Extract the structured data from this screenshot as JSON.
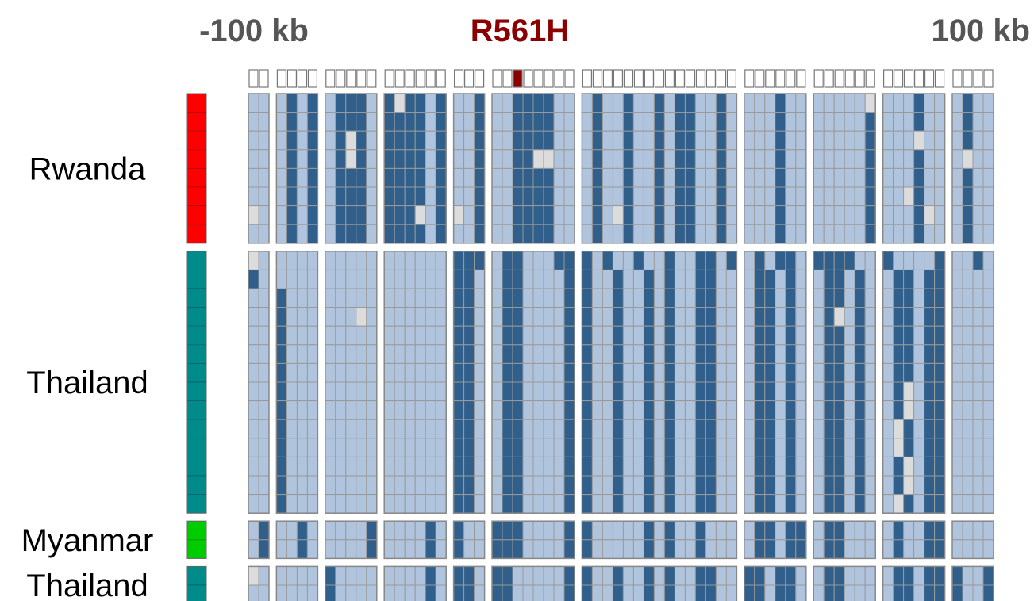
{
  "labels": {
    "left": "-100 kb",
    "center": "R561H",
    "right": "100 kb"
  },
  "header_row": "00 0000 00000 000000 000 00100000 000000000000000 000000 000000 000000 0000",
  "groups": [
    {
      "label": "Rwanda",
      "color": "#ff0000",
      "rows": [
        "00 0101 01110 121101 001 00111100 010010010110010 000100 000002 000100 0100",
        "00 0101 01110 111101 001 00111100 010010010110010 000100 000001 000100 0100",
        "00 0101 01210 111101 001 00111100 010010010110010 000100 000001 000200 0100",
        "00 0101 01210 111101 001 00112200 010010010110010 000100 000001 000100 0200",
        "00 0101 01110 111101 001 00111100 010010010110010 000100 000001 000100 0100",
        "00 0101 01110 111101 001 00111100 010010010110010 000100 000001 002100 0100",
        "20 0101 01110 111201 201 00111100 010210010110010 000100 000001 000120 0100",
        "00 0101 01110 111101 001 00111100 010010010110010 000100 000001 000100 0100"
      ]
    },
    {
      "label": "Thailand",
      "color": "#008b8b",
      "rows": [
        "20 0000 00000 000000 111 01100011 101001001001101 010110 111100 100001 0010",
        "10 0000 00000 000000 110 01100001 100100101001100 011010 011010 011011 0000",
        "00 1000 00000 000000 110 01100001 100100101001100 011010 011010 011011 0000",
        "00 1000 00020 000000 110 01100001 100100101001100 011010 012010 011011 0000",
        "00 1000 00000 000000 110 01100001 100100101001100 011010 011010 011011 0000",
        "00 1000 00000 000000 110 01100001 100100101001100 011010 011010 011011 0000",
        "00 1000 00000 000000 110 01100001 100100101001100 011010 011010 011011 0000",
        "00 1000 00000 000000 110 01100001 100100101001100 011010 011010 012011 0000",
        "00 1000 00000 000000 110 01100001 100100101001100 011010 011010 012011 0000",
        "00 1000 00000 000000 110 01100001 100100101001100 011010 011010 021011 0000",
        "00 1000 00000 000000 110 01100001 100100101001100 011010 011010 021011 0000",
        "00 1000 00000 000000 110 01100001 100100101001100 011010 011010 012011 0000",
        "00 1000 00000 000000 110 01100001 100100101001100 011010 011010 012011 0000",
        "00 1000 00000 000000 110 01100001 100100101001100 011010 011010 021011 0000"
      ]
    },
    {
      "label": "Myanmar",
      "color": "#00cc00",
      "rows": [
        "01 0010 00001 000010 100 11100001 100000101001000 011011 011000 010011 0000",
        "01 0010 00001 000010 100 11100001 100000101001000 011011 011000 010011 0000"
      ]
    },
    {
      "label": "Thailand",
      "color": "#008b8b",
      "rows": [
        "20 0000 10000 000010 110 11000001 100100101001100 110110 011000 011011 1001",
        "00 0000 10000 000010 110 11000001 100100101001100 110110 011000 011011 1001"
      ]
    }
  ]
}
